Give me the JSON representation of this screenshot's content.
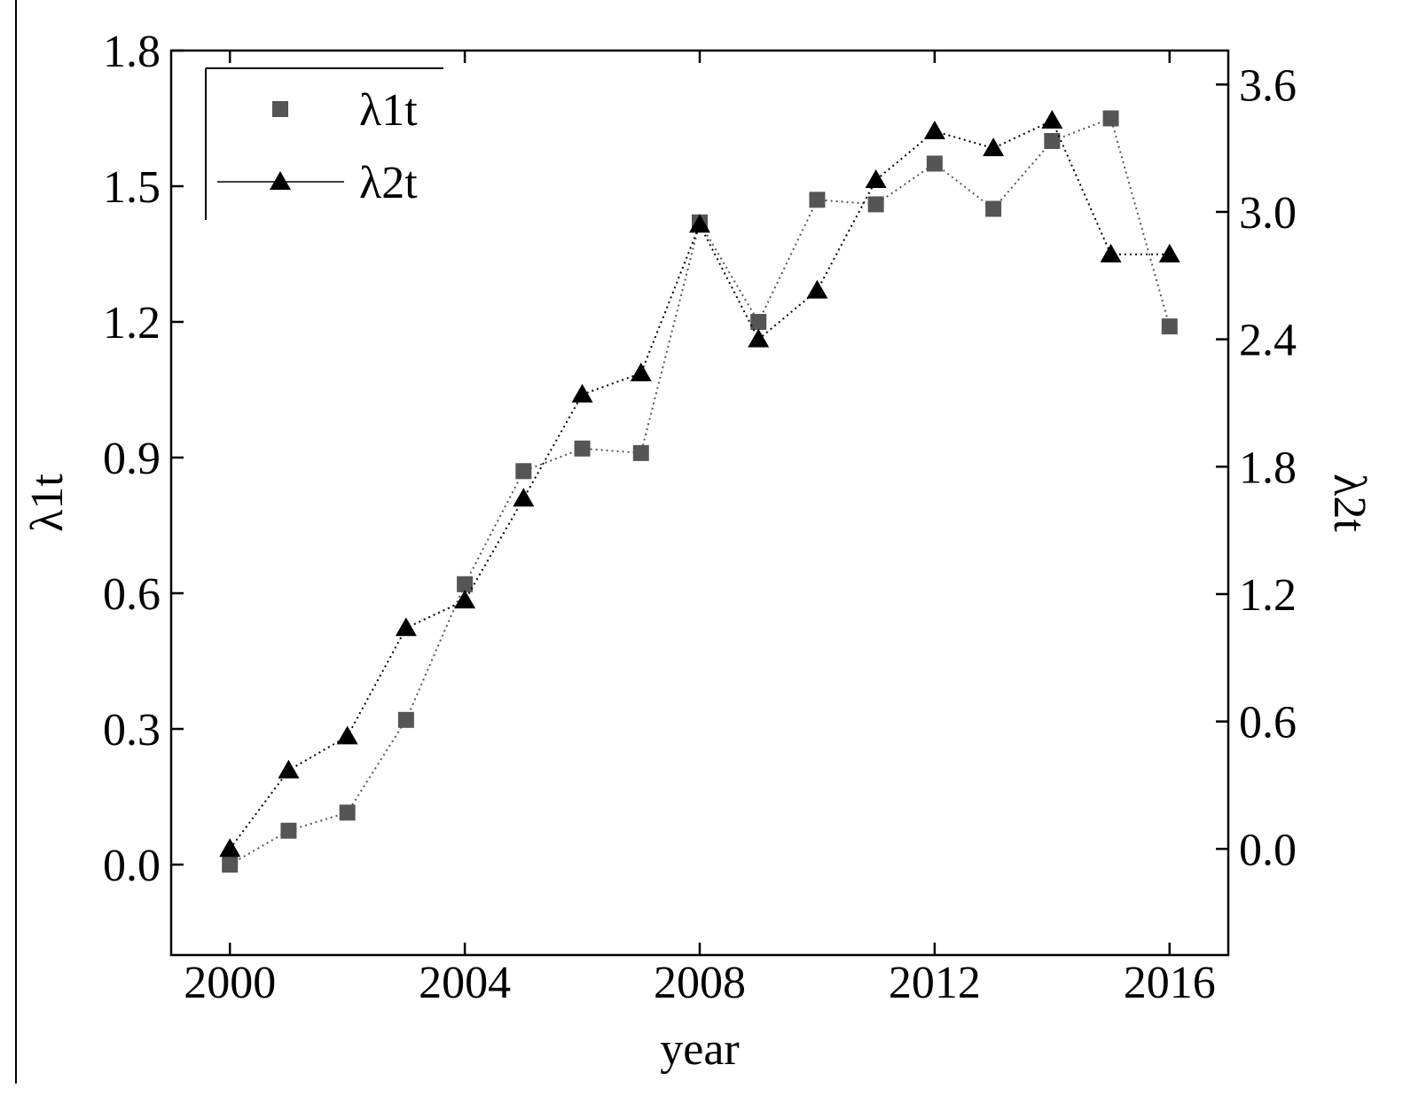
{
  "chart_data": {
    "type": "line",
    "x_label": "year",
    "y_label": "λ1t",
    "y2_label": "λ2t",
    "x": [
      2000,
      2001,
      2002,
      2003,
      2004,
      2005,
      2006,
      2007,
      2008,
      2009,
      2010,
      2011,
      2012,
      2013,
      2014,
      2015,
      2016
    ],
    "series": [
      {
        "name": "λ1t",
        "color": "#555555",
        "marker": "square",
        "axis": "y",
        "values": [
          0.0,
          0.075,
          0.115,
          0.32,
          0.62,
          0.87,
          0.92,
          0.91,
          1.42,
          1.2,
          1.47,
          1.46,
          1.55,
          1.45,
          1.6,
          1.65,
          1.19
        ]
      },
      {
        "name": "λ2t",
        "color": "#000000",
        "marker": "triangle",
        "axis": "y2",
        "values": [
          0.0,
          0.37,
          0.53,
          1.04,
          1.17,
          1.65,
          2.14,
          2.24,
          2.94,
          2.4,
          2.63,
          3.15,
          3.38,
          3.3,
          3.43,
          2.8,
          2.8
        ]
      }
    ],
    "xlim": [
      1999,
      2017
    ],
    "xticks": [
      2000,
      2004,
      2008,
      2012,
      2016
    ],
    "ylim": [
      -0.2,
      1.8
    ],
    "yticks": [
      {
        "value": 0,
        "label": "0.0"
      },
      0.3,
      0.6,
      0.9,
      1.2,
      1.5,
      1.8
    ],
    "y2lim": [
      -0.5,
      3.76
    ],
    "y2ticks": [
      {
        "value": 0,
        "label": "0.0"
      },
      0.6,
      1.2,
      1.8,
      2.4,
      {
        "value": 3,
        "label": "3.0"
      },
      3.6
    ],
    "legend": "upper left",
    "grid": false
  }
}
